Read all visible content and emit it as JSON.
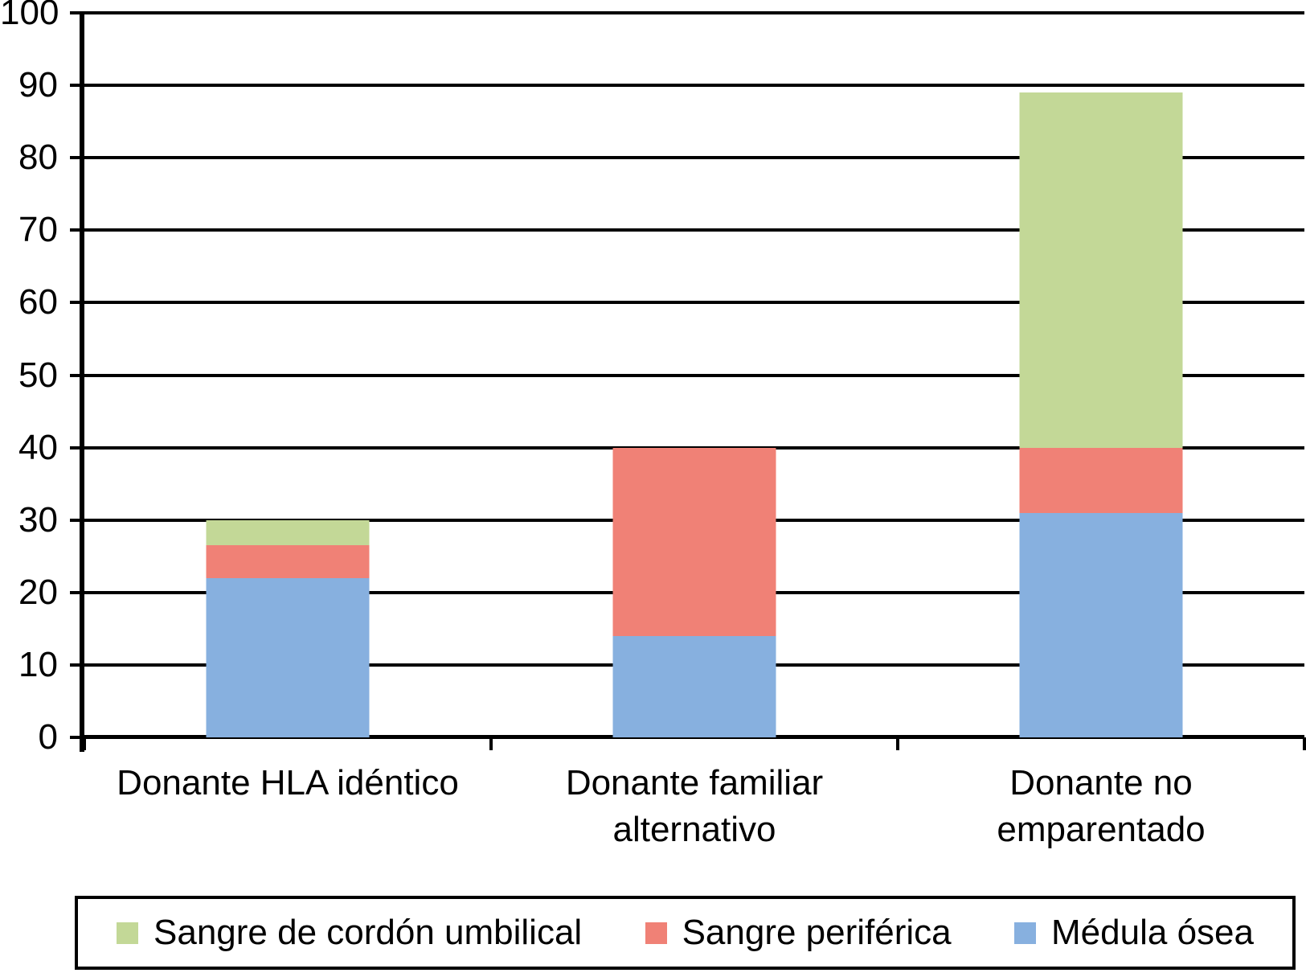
{
  "figure": {
    "background_color": "#ffffff",
    "text_color": "#000000",
    "axis_color": "#000000"
  },
  "chart_data": {
    "type": "bar",
    "stacked": true,
    "title": "",
    "xlabel": "",
    "ylabel": "",
    "categories": [
      "Donante HLA idéntico",
      "Donante familiar alternativo",
      "Donante no emparentado"
    ],
    "category_label_lines": [
      [
        "Donante HLA idéntico"
      ],
      [
        "Donante familiar",
        "alternativo"
      ],
      [
        "Donante no",
        "emparentado"
      ]
    ],
    "series": [
      {
        "name": "Médula ósea",
        "color": "#87b0df",
        "values": [
          22,
          14,
          31
        ]
      },
      {
        "name": "Sangre periférica",
        "color": "#f08176",
        "values": [
          4.5,
          26,
          9
        ]
      },
      {
        "name": "Sangre de cordón umbilical",
        "color": "#c3d897",
        "values": [
          3.5,
          0,
          49
        ]
      }
    ],
    "stack_totals": [
      30,
      40,
      89
    ],
    "y_axis": {
      "min": 0,
      "max": 100,
      "step": 10,
      "tick_labels": [
        "0",
        "10",
        "20",
        "30",
        "40",
        "50",
        "60",
        "70",
        "80",
        "90",
        "100"
      ]
    },
    "grid": "horizontal",
    "legend": {
      "position": "bottom",
      "entries": [
        {
          "label": "Sangre de cordón umbilical",
          "color": "#c3d897"
        },
        {
          "label": "Sangre periférica",
          "color": "#f08176"
        },
        {
          "label": "Médula ósea",
          "color": "#87b0df"
        }
      ]
    }
  }
}
